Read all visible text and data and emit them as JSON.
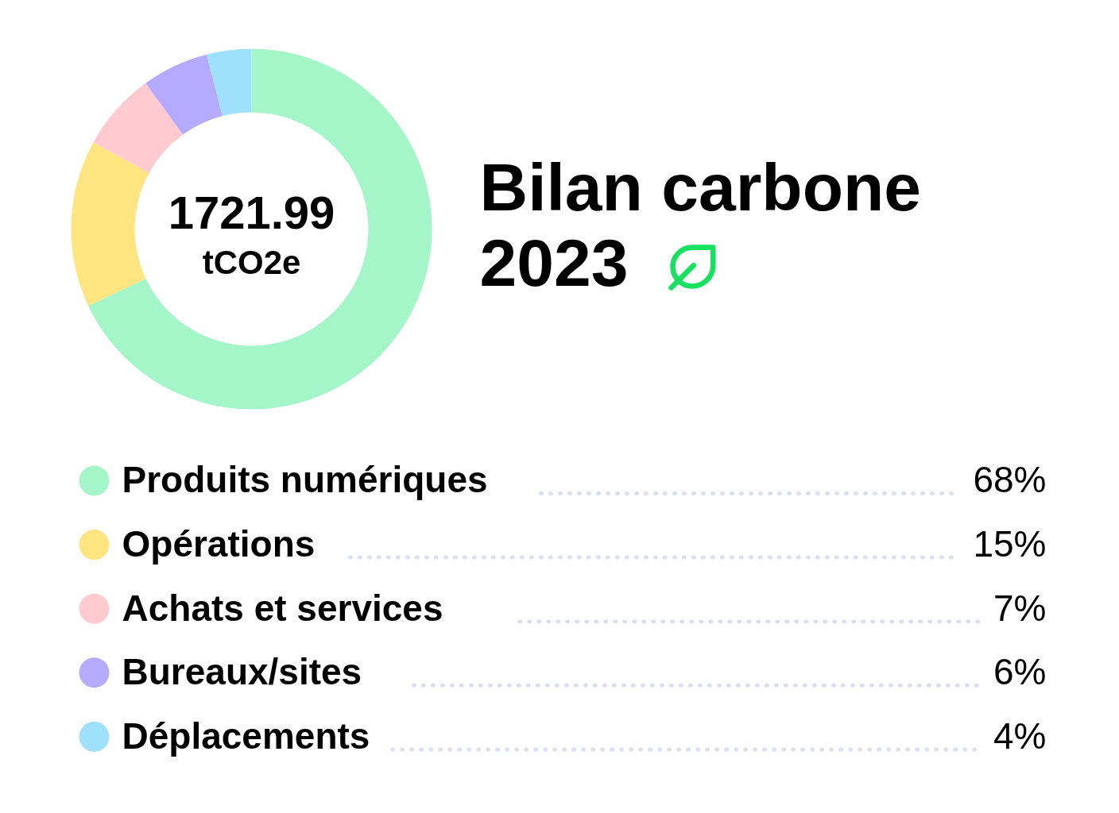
{
  "chart_data": {
    "type": "donut",
    "title": "Bilan carbone 2023",
    "categories": [
      "Produits numériques",
      "Opérations",
      "Achats et services",
      "Bureaux/sites",
      "Déplacements"
    ],
    "values": [
      68,
      15,
      7,
      6,
      4
    ],
    "colors": [
      "#a4f5c8",
      "#ffe57f",
      "#ffcbd0",
      "#b6aaff",
      "#9fe1fd"
    ],
    "value_labels": [
      "68%",
      "15%",
      "7%",
      "6%",
      "4%"
    ],
    "annotations": [
      "1721.99",
      "tCO2e"
    ],
    "legend": "bottom"
  }
}
